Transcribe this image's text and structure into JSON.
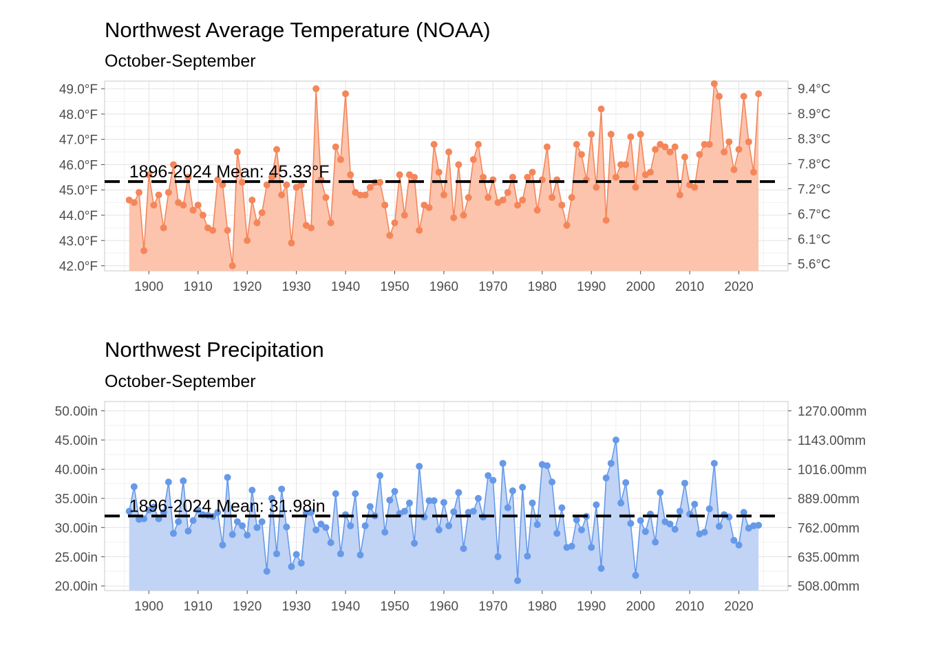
{
  "chart_data": [
    {
      "type": "area",
      "title": "Northwest Average Temperature (NOAA)",
      "subtitle": "October-September",
      "xlabel": "",
      "ylabel": "",
      "x_start": 1896,
      "x_end": 2024,
      "xlim": [
        1891,
        2030
      ],
      "xticks": [
        1900,
        1910,
        1920,
        1930,
        1940,
        1950,
        1960,
        1970,
        1980,
        1990,
        2000,
        2010,
        2020
      ],
      "ylim": [
        41.8,
        49.3
      ],
      "yticks": [
        42,
        43,
        44,
        45,
        46,
        47,
        48,
        49
      ],
      "ytick_labels": [
        "42.0°F",
        "43.0°F",
        "44.0°F",
        "45.0°F",
        "46.0°F",
        "47.0°F",
        "48.0°F",
        "49.0°F"
      ],
      "secondary_yticks": [
        42.08,
        43.07,
        44.06,
        45.05,
        46.04,
        47.03,
        48.02,
        49.01
      ],
      "secondary_ytick_labels": [
        "5.6°C",
        "6.1°C",
        "6.7°C",
        "7.2°C",
        "7.8°C",
        "8.3°C",
        "8.9°C",
        "9.4°C"
      ],
      "mean": 45.33,
      "mean_label": "1896-2024 Mean: 45.33°F",
      "mean_label_x": 1896,
      "grid": true,
      "colors": {
        "line": "#f4865a",
        "point": "#f4865a",
        "fill": "#fcc4ad",
        "mean_line": "#000000"
      },
      "values": [
        44.6,
        44.5,
        44.9,
        42.6,
        45.6,
        44.4,
        44.8,
        43.5,
        44.9,
        46.0,
        44.5,
        44.4,
        45.5,
        44.2,
        44.4,
        44.0,
        43.5,
        43.4,
        45.4,
        45.2,
        43.4,
        42.0,
        46.5,
        45.3,
        43.0,
        44.6,
        43.7,
        44.1,
        45.2,
        45.5,
        46.6,
        44.8,
        45.2,
        42.9,
        45.1,
        45.2,
        43.6,
        43.5,
        49.0,
        45.4,
        44.7,
        43.7,
        46.7,
        46.2,
        48.8,
        45.6,
        44.9,
        44.8,
        44.8,
        45.1,
        45.3,
        45.3,
        44.4,
        43.2,
        43.7,
        45.6,
        44.0,
        45.6,
        45.5,
        43.4,
        44.4,
        44.3,
        46.8,
        45.7,
        44.8,
        46.5,
        43.9,
        46.0,
        44.0,
        44.7,
        46.2,
        46.8,
        45.5,
        44.7,
        45.4,
        44.5,
        44.6,
        44.9,
        45.5,
        44.4,
        44.6,
        45.5,
        45.7,
        44.2,
        45.4,
        46.7,
        44.7,
        45.4,
        44.4,
        43.6,
        44.7,
        46.8,
        46.4,
        45.4,
        47.2,
        45.1,
        48.2,
        43.8,
        47.2,
        45.5,
        46.0,
        46.0,
        47.1,
        45.1,
        47.2,
        45.6,
        45.7,
        46.6,
        46.8,
        46.7,
        46.5,
        46.7,
        44.8,
        46.3,
        45.2,
        45.1,
        46.4,
        46.8,
        46.8,
        49.2,
        48.7,
        46.5,
        46.9,
        45.8,
        46.6,
        48.7,
        46.9,
        45.7,
        48.8
      ]
    },
    {
      "type": "area",
      "title": "Northwest Precipitation",
      "subtitle": "October-September",
      "xlabel": "",
      "ylabel": "",
      "x_start": 1896,
      "x_end": 2024,
      "xlim": [
        1891,
        2030
      ],
      "xticks": [
        1900,
        1910,
        1920,
        1930,
        1940,
        1950,
        1960,
        1970,
        1980,
        1990,
        2000,
        2010,
        2020
      ],
      "ylim": [
        19.2,
        51.6
      ],
      "yticks": [
        20,
        25,
        30,
        35,
        40,
        45,
        50
      ],
      "ytick_labels": [
        "20.00in",
        "25.00in",
        "30.00in",
        "35.00in",
        "40.00in",
        "45.00in",
        "50.00in"
      ],
      "secondary_yticks": [
        20,
        25,
        30,
        35,
        40,
        45,
        50
      ],
      "secondary_ytick_labels": [
        "508.00mm",
        "635.00mm",
        "762.00mm",
        "889.00mm",
        "1016.00mm",
        "1143.00mm",
        "1270.00mm"
      ],
      "mean": 31.98,
      "mean_label": "1896-2024 Mean: 31.98in",
      "mean_label_x": 1896,
      "grid": true,
      "colors": {
        "line": "#6699e8",
        "point": "#6699e8",
        "fill": "#c1d4f6",
        "mean_line": "#000000"
      },
      "values": [
        32.8,
        37.0,
        31.4,
        31.5,
        33.0,
        33.5,
        31.5,
        32.6,
        37.8,
        29.0,
        31.0,
        38.0,
        29.4,
        31.2,
        33.0,
        32.2,
        32.1,
        31.9,
        32.6,
        27.0,
        38.6,
        28.8,
        31.0,
        30.3,
        28.7,
        36.4,
        30.0,
        31.0,
        22.5,
        35.0,
        25.5,
        36.6,
        30.1,
        23.3,
        25.4,
        23.9,
        32.5,
        32.6,
        29.6,
        30.6,
        30.0,
        27.4,
        35.8,
        25.5,
        32.2,
        30.3,
        35.8,
        25.3,
        30.3,
        33.6,
        32.0,
        38.9,
        29.2,
        34.7,
        36.2,
        32.4,
        32.8,
        34.2,
        27.3,
        40.5,
        31.8,
        34.6,
        34.6,
        29.6,
        34.3,
        30.3,
        32.7,
        36.0,
        26.4,
        32.6,
        32.8,
        35.0,
        31.8,
        38.9,
        38.1,
        25.0,
        41.0,
        33.4,
        36.3,
        20.9,
        36.9,
        25.1,
        34.2,
        30.5,
        40.8,
        40.6,
        37.8,
        29.0,
        33.4,
        26.6,
        26.8,
        31.3,
        29.6,
        31.9,
        26.6,
        33.9,
        23.0,
        38.5,
        41.0,
        45.0,
        34.2,
        37.7,
        30.7,
        21.8,
        31.2,
        29.3,
        32.3,
        27.5,
        36.0,
        31.0,
        30.6,
        29.7,
        32.8,
        37.6,
        32.3,
        34.0,
        28.9,
        29.2,
        33.2,
        41.0,
        30.2,
        32.2,
        31.8,
        27.8,
        27.0,
        32.6,
        29.9,
        30.3,
        30.4
      ]
    }
  ]
}
